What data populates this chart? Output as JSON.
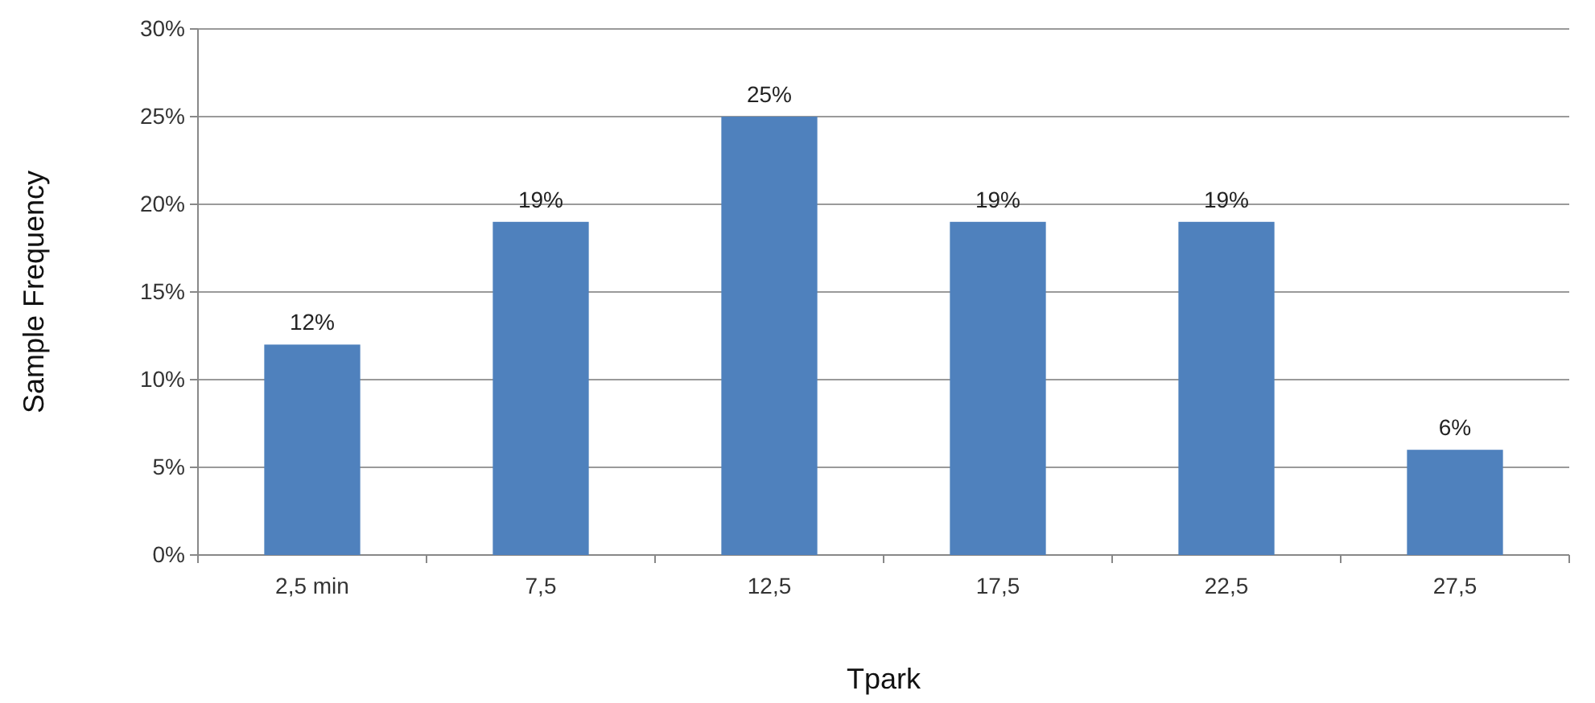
{
  "chart_data": {
    "type": "bar",
    "xlabel": "Tpark",
    "ylabel": "Sample Frequency",
    "categories": [
      "2,5 min",
      "7,5",
      "12,5",
      "17,5",
      "22,5",
      "27,5"
    ],
    "values": [
      12,
      19,
      25,
      19,
      19,
      6
    ],
    "value_labels": [
      "12%",
      "19%",
      "25%",
      "19%",
      "19%",
      "6%"
    ],
    "color": "#4f81bd",
    "ylim": [
      0,
      30
    ],
    "yticks": [
      {
        "value": 0,
        "label": "0%"
      },
      {
        "value": 5,
        "label": "5%"
      },
      {
        "value": 10,
        "label": "10%"
      },
      {
        "value": 15,
        "label": "15%"
      },
      {
        "value": 20,
        "label": "20%"
      },
      {
        "value": 25,
        "label": "25%"
      },
      {
        "value": 30,
        "label": "30%"
      }
    ],
    "grid": "y"
  }
}
